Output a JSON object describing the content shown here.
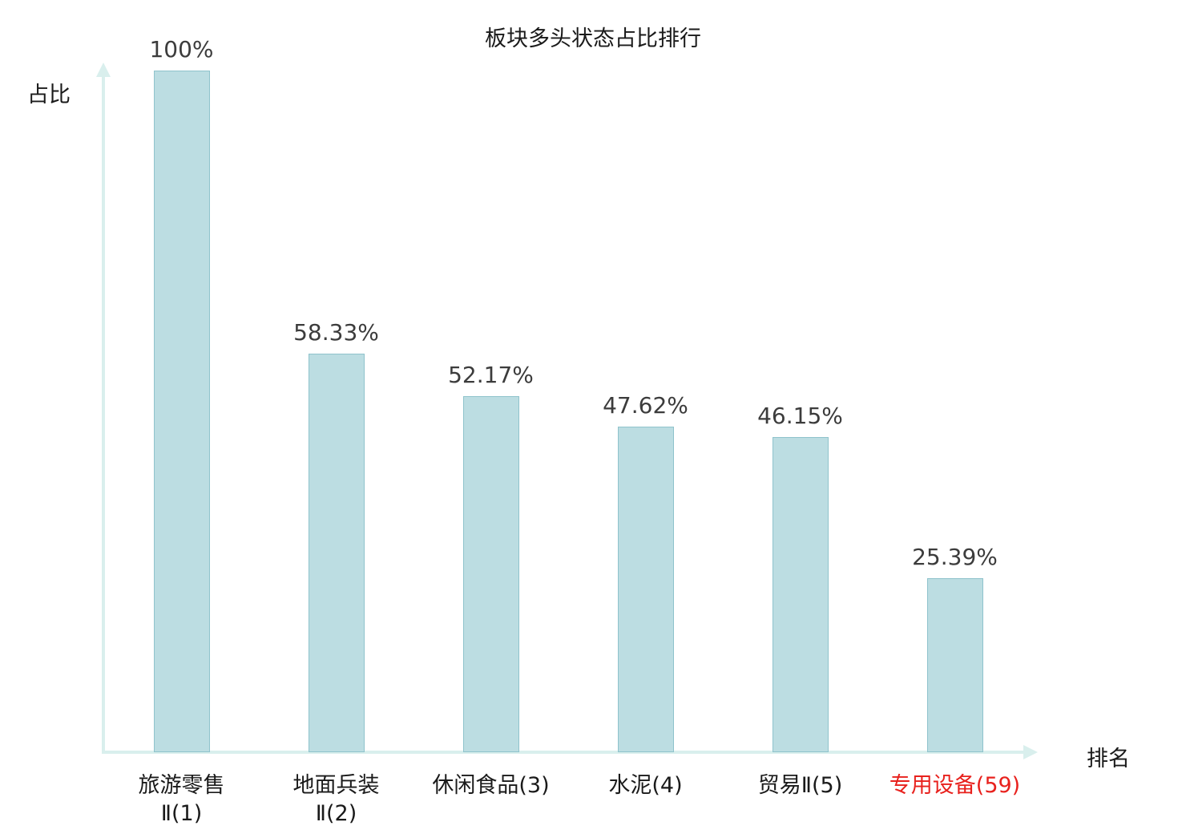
{
  "title": "板块多头状态占比排行",
  "axes": {
    "y_label": "占比",
    "x_label": "排名"
  },
  "chart_data": {
    "type": "bar",
    "title": "板块多头状态占比排行",
    "xlabel": "排名",
    "ylabel": "占比",
    "ylim": [
      0,
      100
    ],
    "grid": false,
    "legend": "none",
    "categories": [
      "旅游零售Ⅱ(1)",
      "地面兵装Ⅱ(2)",
      "休闲食品(3)",
      "水泥(4)",
      "贸易Ⅱ(5)",
      "专用设备(59)"
    ],
    "category_lines": [
      [
        "旅游零售",
        "Ⅱ(1)"
      ],
      [
        "地面兵装",
        "Ⅱ(2)"
      ],
      [
        "休闲食品(3)"
      ],
      [
        "水泥(4)"
      ],
      [
        "贸易Ⅱ(5)"
      ],
      [
        "专用设备(59)"
      ]
    ],
    "values": [
      100,
      58.33,
      52.17,
      47.62,
      46.15,
      25.39
    ],
    "value_labels": [
      "100%",
      "58.33%",
      "52.17%",
      "47.62%",
      "46.15%",
      "25.39%"
    ],
    "highlight_index": 5,
    "colors": {
      "bar_fill": "#bcdde2",
      "bar_border": "#8fc3cc",
      "axis": "#d9efed",
      "value_label": "#3c3c3c",
      "category_label": "#1a1a1a",
      "highlight_label": "#e8211d"
    }
  }
}
